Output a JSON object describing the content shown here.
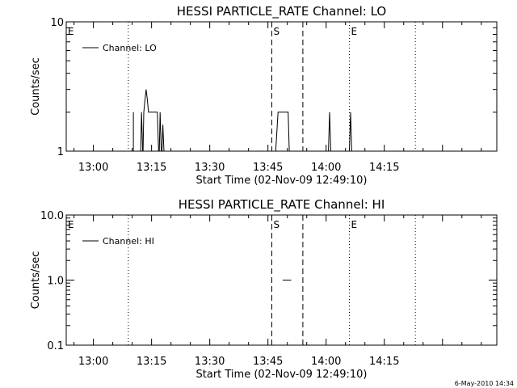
{
  "chart_data": [
    {
      "type": "line",
      "title": "HESSI PARTICLE_RATE Channel: LO",
      "xlabel": "Start Time (02-Nov-09 12:49:10)",
      "ylabel": "Counts/sec",
      "yscale": "log",
      "ylim": [
        1,
        10
      ],
      "y_ticks": [
        {
          "value": 1,
          "label": "1"
        },
        {
          "value": 10,
          "label": "10"
        }
      ],
      "x_range_minutes": [
        -7,
        104
      ],
      "x_ticks": [
        {
          "minute": 0,
          "label": "13:00"
        },
        {
          "minute": 15,
          "label": "13:15"
        },
        {
          "minute": 30,
          "label": "13:30"
        },
        {
          "minute": 45,
          "label": "13:45"
        },
        {
          "minute": 60,
          "label": "14:00"
        },
        {
          "minute": 75,
          "label": "14:15"
        }
      ],
      "legend": {
        "label": "Channel: LO",
        "position": "top-left"
      },
      "series": [
        {
          "segments": [
            [
              [
                10.3,
                2
              ],
              [
                10.3,
                1
              ]
            ],
            [
              [
                12.2,
                1
              ],
              [
                12.4,
                2
              ],
              [
                12.7,
                1
              ]
            ],
            [
              [
                12.8,
                1
              ],
              [
                13.0,
                2
              ],
              [
                13.3,
                2.5
              ],
              [
                13.6,
                3
              ],
              [
                13.9,
                2.5
              ],
              [
                14.2,
                2
              ],
              [
                16.5,
                2
              ],
              [
                16.8,
                1
              ]
            ],
            [
              [
                17.0,
                1
              ],
              [
                17.2,
                2
              ],
              [
                17.5,
                1
              ]
            ],
            [
              [
                17.7,
                1
              ],
              [
                17.9,
                1.6
              ],
              [
                18.2,
                1
              ]
            ],
            [
              [
                47.0,
                1
              ],
              [
                47.6,
                2
              ],
              [
                50.2,
                2
              ],
              [
                50.5,
                1
              ]
            ],
            [
              [
                60.6,
                1
              ],
              [
                60.9,
                2
              ],
              [
                61.2,
                1
              ]
            ],
            [
              [
                66.0,
                1
              ],
              [
                66.3,
                2
              ],
              [
                66.6,
                1
              ]
            ]
          ]
        }
      ],
      "markers": [
        {
          "label": "E",
          "minute": -7,
          "style": "dotted"
        },
        {
          "label": "",
          "minute": 9,
          "style": "dotted"
        },
        {
          "label": "S",
          "minute": 46,
          "style": "dashed"
        },
        {
          "label": "",
          "minute": 54,
          "style": "dashed"
        },
        {
          "label": "E",
          "minute": 66,
          "style": "dotted"
        },
        {
          "label": "",
          "minute": 83,
          "style": "dotted"
        }
      ]
    },
    {
      "type": "line",
      "title": "HESSI PARTICLE_RATE Channel: HI",
      "xlabel": "Start Time (02-Nov-09 12:49:10)",
      "ylabel": "Counts/sec",
      "yscale": "log",
      "ylim": [
        0.1,
        10
      ],
      "y_ticks": [
        {
          "value": 0.1,
          "label": "0.1"
        },
        {
          "value": 1,
          "label": "1.0"
        },
        {
          "value": 10,
          "label": "10.0"
        }
      ],
      "x_range_minutes": [
        -7,
        104
      ],
      "x_ticks": [
        {
          "minute": 0,
          "label": "13:00"
        },
        {
          "minute": 15,
          "label": "13:15"
        },
        {
          "minute": 30,
          "label": "13:30"
        },
        {
          "minute": 45,
          "label": "13:45"
        },
        {
          "minute": 60,
          "label": "14:00"
        },
        {
          "minute": 75,
          "label": "14:15"
        }
      ],
      "legend": {
        "label": "Channel: HI",
        "position": "top-left"
      },
      "series": [
        {
          "segments": [
            [
              [
                48.8,
                1
              ],
              [
                51.0,
                1
              ]
            ]
          ]
        }
      ],
      "markers": [
        {
          "label": "E",
          "minute": -7,
          "style": "dotted"
        },
        {
          "label": "",
          "minute": 9,
          "style": "dotted"
        },
        {
          "label": "S",
          "minute": 46,
          "style": "dashed"
        },
        {
          "label": "",
          "minute": 54,
          "style": "dashed"
        },
        {
          "label": "E",
          "minute": 66,
          "style": "dotted"
        },
        {
          "label": "",
          "minute": 83,
          "style": "dotted"
        }
      ]
    }
  ],
  "footer": {
    "date": "6-May-2010 14:34"
  }
}
